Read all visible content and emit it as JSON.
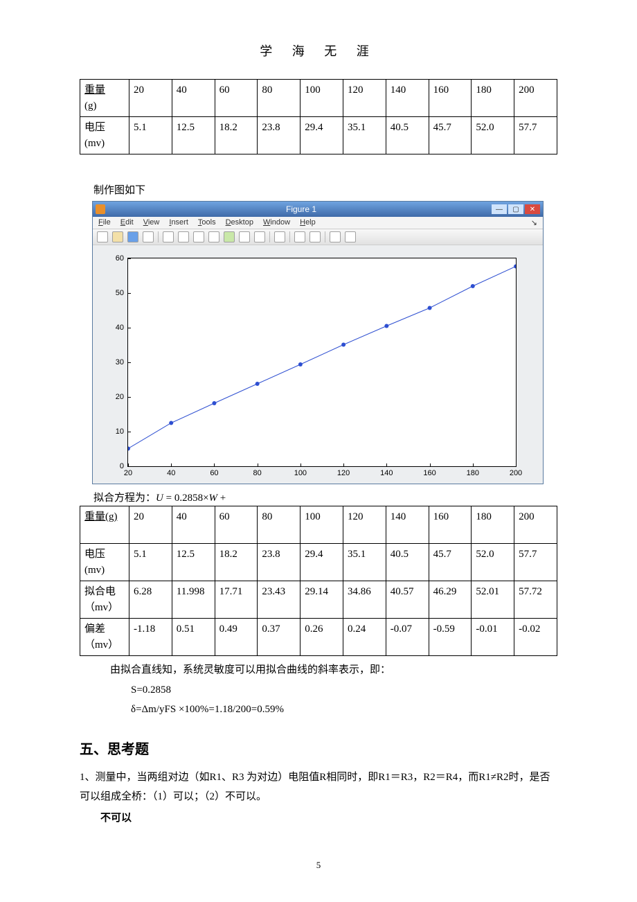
{
  "page": {
    "title": "学 海 无  涯",
    "number": "5"
  },
  "table1": {
    "row1_label_top": "重量",
    "row1_label_bot": "(g)",
    "row2_label_top": "电压",
    "row2_label_bot": "(mv)",
    "cols": [
      "20",
      "40",
      "60",
      "80",
      "100",
      "120",
      "140",
      "160",
      "180",
      "200"
    ],
    "voltages": [
      "5.1",
      "12.5",
      "18.2",
      "23.8",
      "29.4",
      "35.1",
      "40.5",
      "45.7",
      "52.0",
      "57.7"
    ]
  },
  "caption1": "制作图如下",
  "figure": {
    "title": "Figure 1",
    "menus": [
      "File",
      "Edit",
      "View",
      "Insert",
      "Tools",
      "Desktop",
      "Window",
      "Help"
    ],
    "chart": {
      "type": "line",
      "x": [
        20,
        40,
        60,
        80,
        100,
        120,
        140,
        160,
        180,
        200
      ],
      "y": [
        5.1,
        12.5,
        18.2,
        23.8,
        29.4,
        35.1,
        40.5,
        45.7,
        52.0,
        57.7
      ],
      "xlim": [
        20,
        200
      ],
      "ylim": [
        0,
        60
      ],
      "xticks": [
        20,
        40,
        60,
        80,
        100,
        120,
        140,
        160,
        180,
        200
      ],
      "yticks": [
        0,
        10,
        20,
        30,
        40,
        50,
        60
      ],
      "line_color": "#2e4fd1",
      "marker_color": "#2e4fd1",
      "marker": "dot",
      "marker_size": 3,
      "line_width": 1,
      "background_color": "#ffffff",
      "axes_color": "#000000",
      "plot_bg": "#eceef0",
      "tick_fontsize": 11
    }
  },
  "formula_prefix": "拟合方程为：",
  "formula_body": "U = 0.2858×W +",
  "table2": {
    "r1_label": "重量(g)",
    "r2_label_top": "电压",
    "r2_label_bot": "(mv)",
    "r3_label_top": "拟合电",
    "r3_label_bot": "（mv）",
    "r4_label_top": "偏差",
    "r4_label_bot": "（mv）",
    "weights": [
      "20",
      "40",
      "60",
      "80",
      "100",
      "120",
      "140",
      "160",
      "180",
      "200"
    ],
    "voltages": [
      "5.1",
      "12.5",
      "18.2",
      "23.8",
      "29.4",
      "35.1",
      "40.5",
      "45.7",
      "52.0",
      "57.7"
    ],
    "fitted": [
      "6.28",
      "11.998",
      "17.71",
      "23.43",
      "29.14",
      "34.86",
      "40.57",
      "46.29",
      "52.01",
      "57.72"
    ],
    "dev": [
      "-1.18",
      "0.51",
      "0.49",
      "0.37",
      "0.26",
      "0.24",
      "-0.07",
      "-0.59",
      "-0.01",
      "-0.02"
    ]
  },
  "analysis": {
    "line1": "由拟合直线知，系统灵敏度可以用拟合曲线的斜率表示，即：",
    "line2": "S=0.2858",
    "line3": "δ=Δm/yFS ×100%=1.18/200=0.59%"
  },
  "section5": {
    "heading": "五、思考题",
    "q1": "1、测量中，当两组对边（如R1、R3 为对边）电阻值R相同时，即R1＝R3，R2＝R4，而R1≠R2时，是否可以组成全桥：（1）可以；（2）不可以。",
    "answer1": "不可以"
  }
}
